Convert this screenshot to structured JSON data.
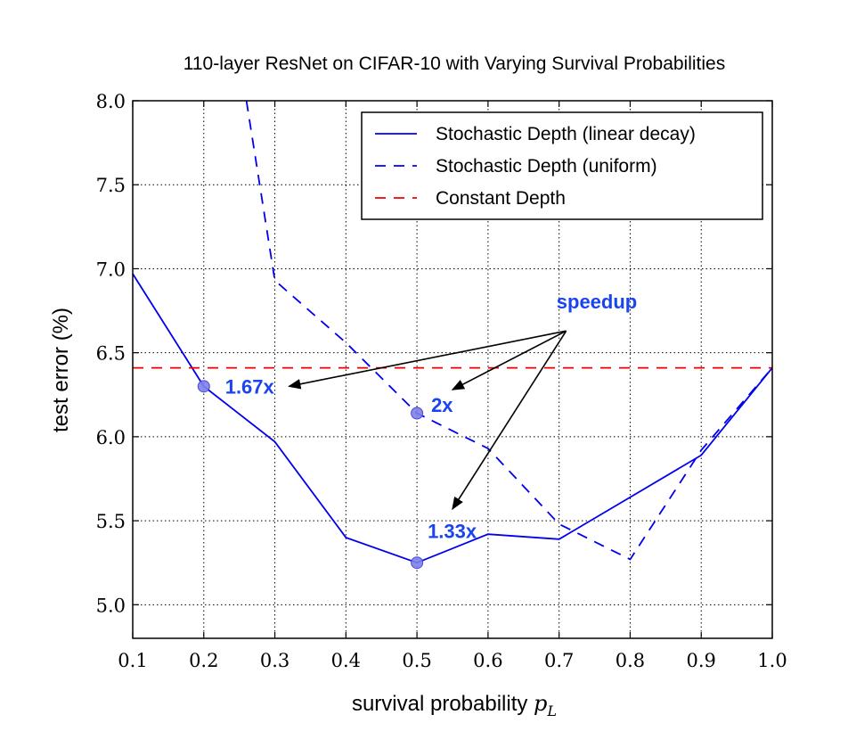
{
  "chart_data": {
    "type": "line",
    "title": "110-layer ResNet on CIFAR-10 with Varying Survival Probabilities",
    "xlabel": "survival probability",
    "xlabel_symbol": "p",
    "xlabel_subscript": "L",
    "ylabel": "test error (%)",
    "xlim": [
      0.1,
      1.0
    ],
    "ylim": [
      4.8,
      8.0
    ],
    "xticks": [
      "0.1",
      "0.2",
      "0.3",
      "0.4",
      "0.5",
      "0.6",
      "0.7",
      "0.8",
      "0.9",
      "1.0"
    ],
    "yticks": [
      "5.0",
      "5.5",
      "6.0",
      "6.5",
      "7.0",
      "7.5",
      "8.0"
    ],
    "grid": true,
    "legend_position": "top-right",
    "series": [
      {
        "name": "Stochastic Depth (linear decay)",
        "style": "solid",
        "color": "#0000ee",
        "x": [
          0.1,
          0.2,
          0.3,
          0.4,
          0.5,
          0.6,
          0.7,
          0.8,
          0.9,
          1.0
        ],
        "y": [
          6.97,
          6.3,
          5.97,
          5.4,
          5.25,
          5.42,
          5.39,
          5.64,
          5.89,
          6.41
        ]
      },
      {
        "name": "Stochastic Depth (uniform)",
        "style": "dashed",
        "color": "#0000ee",
        "x": [
          0.26,
          0.3,
          0.4,
          0.5,
          0.6,
          0.7,
          0.8,
          0.9,
          1.0
        ],
        "y": [
          8.0,
          6.93,
          6.56,
          6.14,
          5.93,
          5.48,
          5.27,
          5.92,
          6.41
        ]
      },
      {
        "name": "Constant Depth",
        "style": "dashed",
        "color": "#ee0000",
        "x": [
          0.1,
          1.0
        ],
        "y": [
          6.41,
          6.41
        ]
      }
    ],
    "markers": [
      {
        "x": 0.2,
        "y": 6.3
      },
      {
        "x": 0.5,
        "y": 6.14
      },
      {
        "x": 0.5,
        "y": 5.25
      }
    ],
    "annotations": {
      "source_label": "speedup",
      "source": {
        "x": 0.71,
        "y": 6.63
      },
      "arrows": [
        {
          "label": "1.67x",
          "tip": {
            "x": 0.32,
            "y": 6.3
          },
          "text_at": {
            "x": 0.23,
            "y": 6.3
          }
        },
        {
          "label": "2x",
          "tip": {
            "x": 0.55,
            "y": 6.28
          },
          "text_at": {
            "x": 0.52,
            "y": 6.19
          }
        },
        {
          "label": "1.33x",
          "tip": {
            "x": 0.55,
            "y": 5.57
          },
          "text_at": {
            "x": 0.515,
            "y": 5.44
          }
        }
      ],
      "color": "#1a44ee"
    }
  }
}
